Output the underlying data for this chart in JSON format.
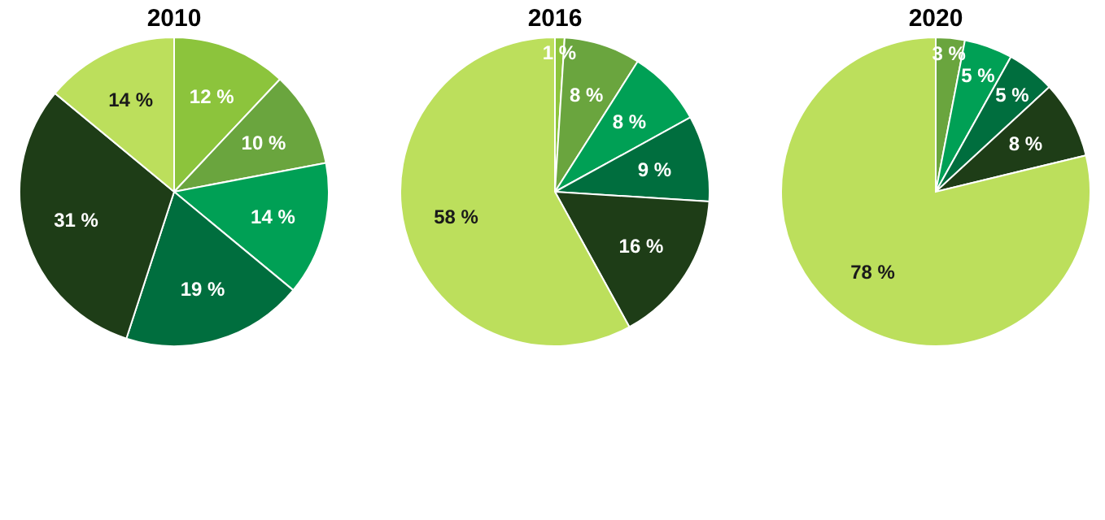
{
  "chart_data": [
    {
      "type": "pie",
      "title": "2010",
      "categories": [
        null,
        null,
        null,
        null,
        null,
        null
      ],
      "values": [
        12,
        10,
        14,
        19,
        31,
        14
      ],
      "value_labels": [
        "12 %",
        "10 %",
        "14 %",
        "19 %",
        "31 %",
        "14 %"
      ],
      "colors": [
        "#8cc43c",
        "#6aa53e",
        "#00a055",
        "#006e3e",
        "#1e3d17",
        "#bcdf5c"
      ]
    },
    {
      "type": "pie",
      "title": "2016",
      "categories": [
        null,
        null,
        null,
        null,
        null,
        null
      ],
      "values": [
        1,
        8,
        8,
        9,
        16,
        58
      ],
      "value_labels": [
        "1 %",
        "8 %",
        "8 %",
        "9 %",
        "16 %",
        "58 %"
      ],
      "colors": [
        "#8cc43c",
        "#6aa53e",
        "#00a055",
        "#006e3e",
        "#1e3d17",
        "#bcdf5c"
      ]
    },
    {
      "type": "pie",
      "title": "2020",
      "categories": [
        null,
        null,
        null,
        null,
        null,
        null
      ],
      "values": [
        null,
        3,
        5,
        5,
        8,
        78
      ],
      "value_labels": [
        null,
        "3 %",
        "5 %",
        "5 %",
        "8 %",
        "78 %"
      ],
      "colors": [
        "#8cc43c",
        "#6aa53e",
        "#00a055",
        "#006e3e",
        "#1e3d17",
        "#bcdf5c"
      ]
    }
  ]
}
